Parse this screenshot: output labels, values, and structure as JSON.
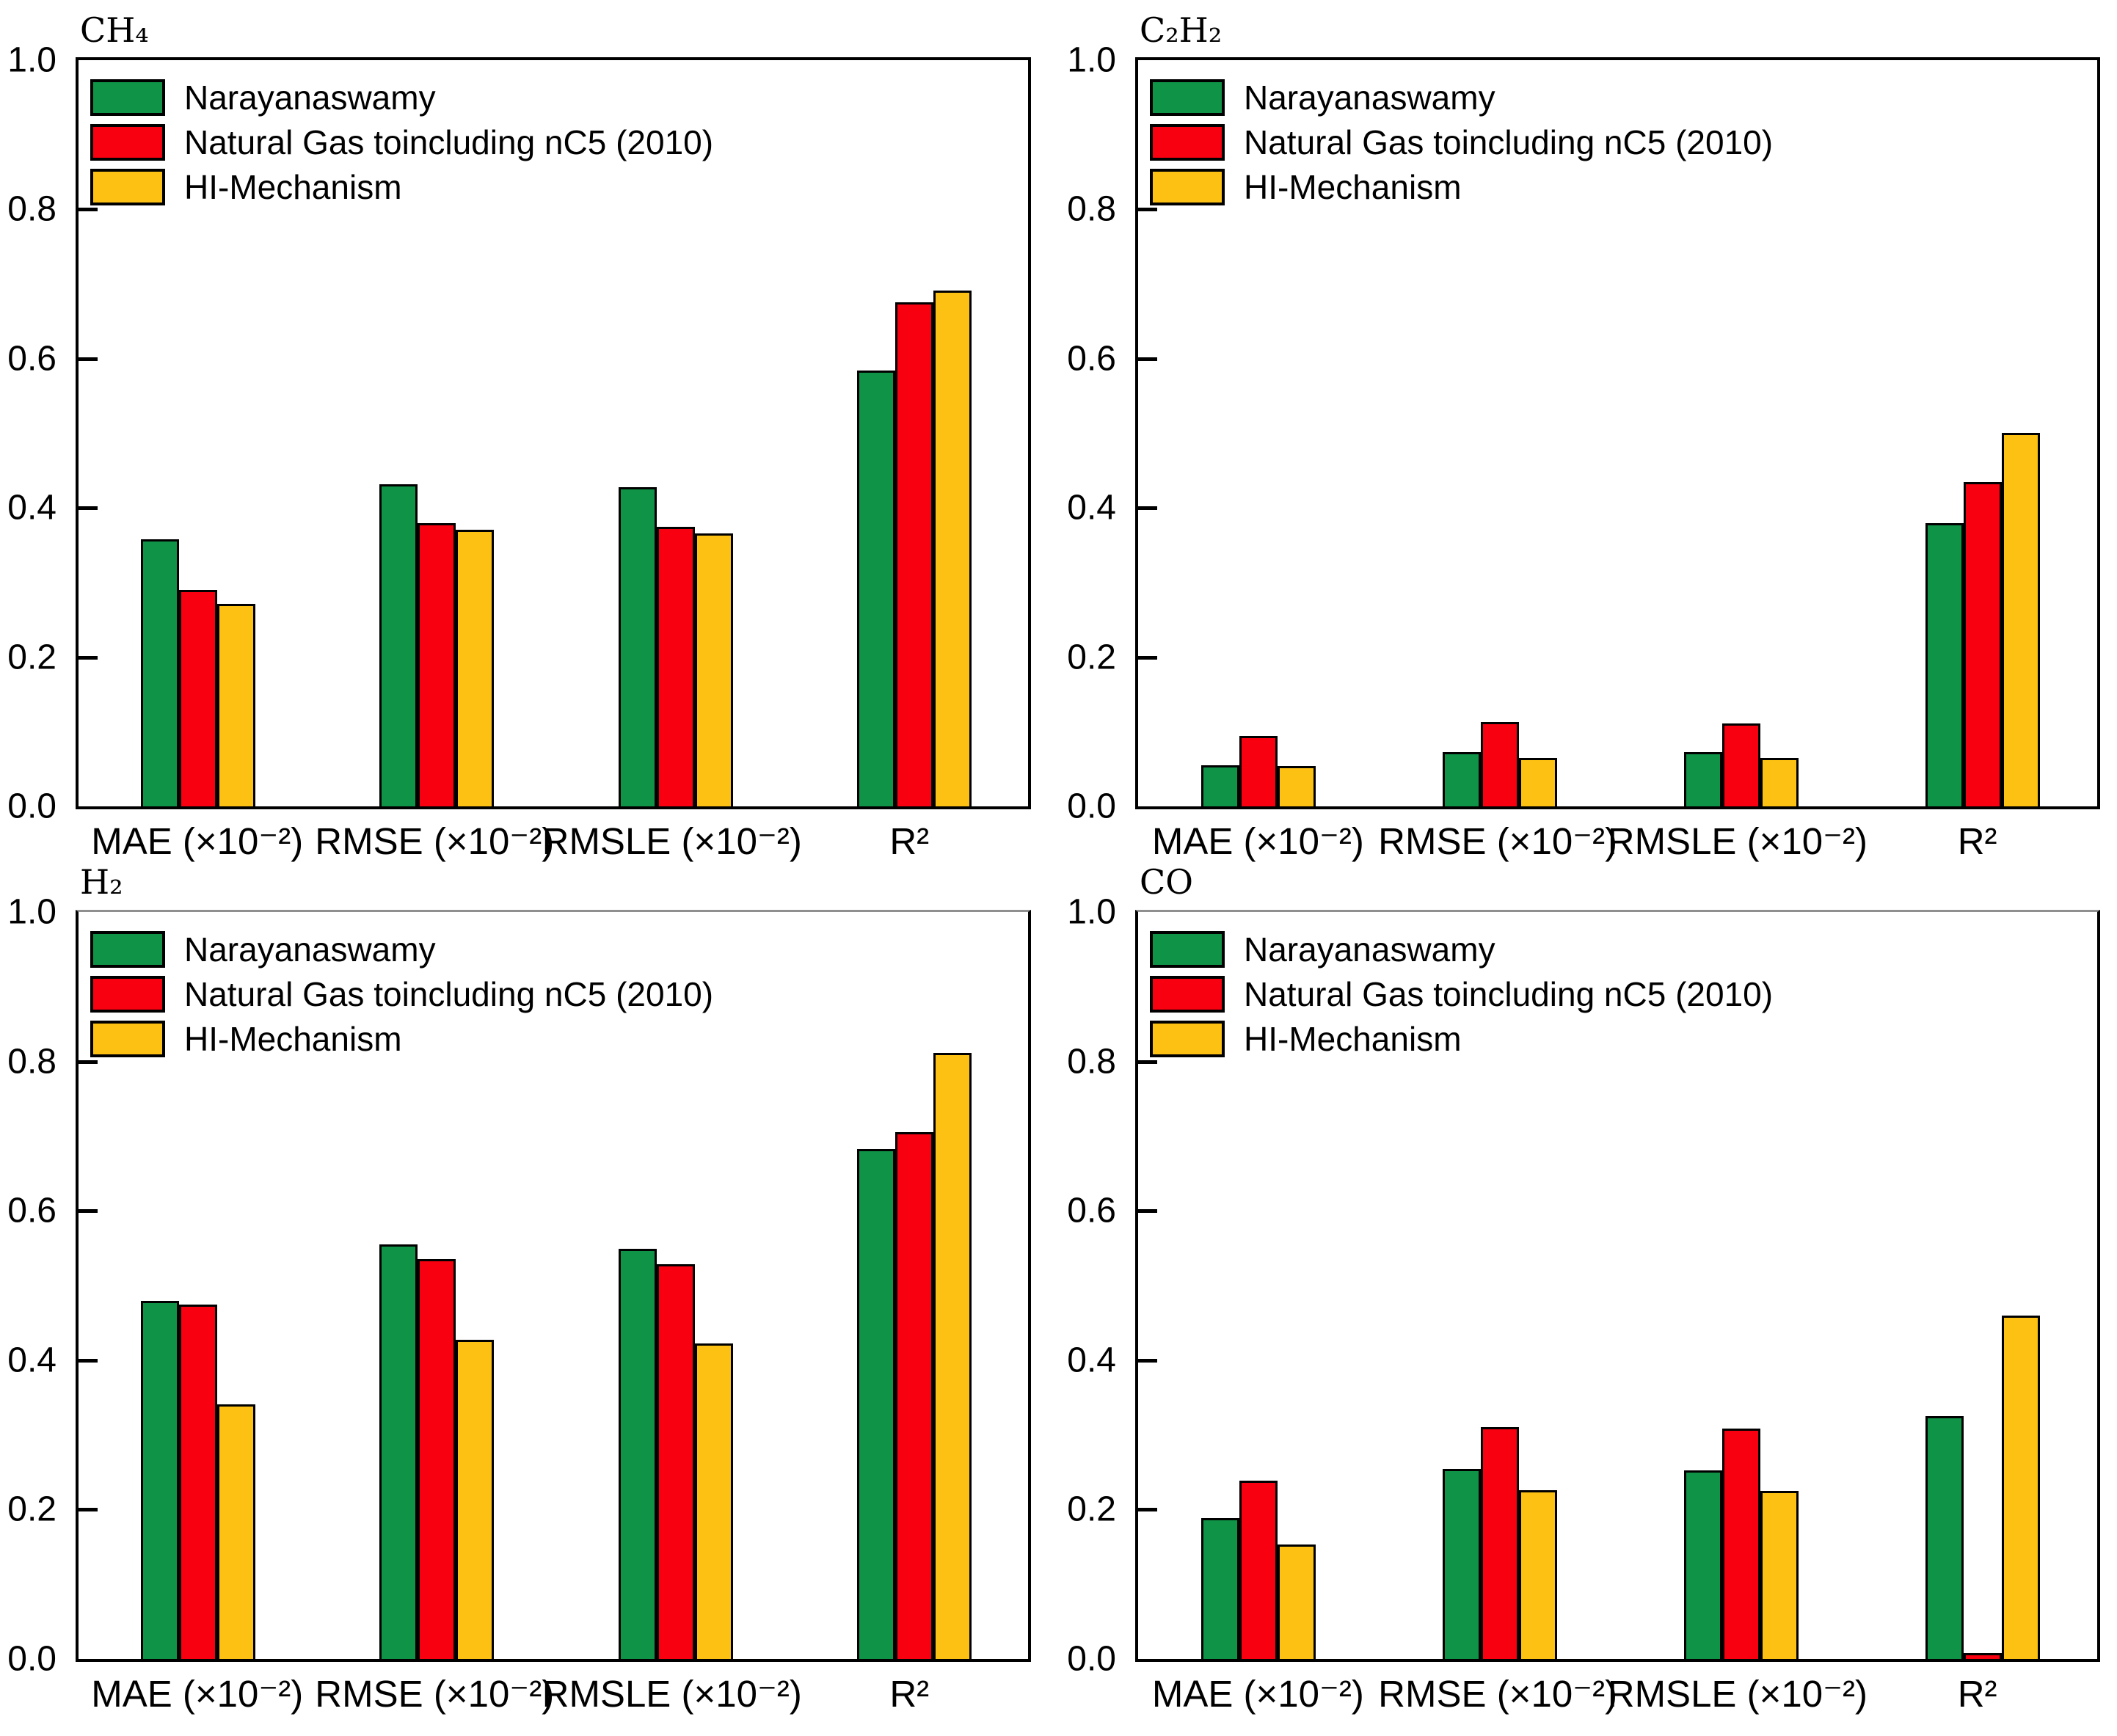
{
  "figure_title": "",
  "legend": {
    "items": [
      {
        "label": "Narayanaswamy",
        "color": "#0F9347"
      },
      {
        "label": "Natural Gas toincluding nC5 (2010)",
        "color": "#F8000F"
      },
      {
        "label": "HI-Mechanism",
        "color": "#FDC113"
      }
    ]
  },
  "axes": {
    "ylim": [
      0.0,
      1.0
    ],
    "y_ticks": [
      "0.0",
      "0.2",
      "0.4",
      "0.6",
      "0.8",
      "1.0"
    ],
    "grid": "off",
    "legend_position": "upper-left-inside"
  },
  "chart_data": [
    {
      "type": "bar",
      "title": "CH₄",
      "xlabel": "",
      "ylabel": "",
      "ylim": [
        0.0,
        1.0
      ],
      "categories": [
        "MAE (×10⁻²)",
        "RMSE (×10⁻²)",
        "RMSLE (×10⁻²)",
        "R²"
      ],
      "series": [
        {
          "name": "Narayanaswamy",
          "color": "#0F9347",
          "values": [
            0.358,
            0.432,
            0.428,
            0.584
          ]
        },
        {
          "name": "Natural Gas toincluding nC5 (2010)",
          "color": "#F8000F",
          "values": [
            0.29,
            0.38,
            0.375,
            0.676
          ]
        },
        {
          "name": "HI-Mechanism",
          "color": "#FDC113",
          "values": [
            0.271,
            0.371,
            0.366,
            0.691
          ]
        }
      ]
    },
    {
      "type": "bar",
      "title": "C₂H₂",
      "xlabel": "",
      "ylabel": "",
      "ylim": [
        0.0,
        1.0
      ],
      "categories": [
        "MAE (×10⁻²)",
        "RMSE (×10⁻²)",
        "RMSLE (×10⁻²)",
        "R²"
      ],
      "series": [
        {
          "name": "Narayanaswamy",
          "color": "#0F9347",
          "values": [
            0.055,
            0.073,
            0.073,
            0.38
          ]
        },
        {
          "name": "Natural Gas toincluding nC5 (2010)",
          "color": "#F8000F",
          "values": [
            0.094,
            0.113,
            0.111,
            0.435
          ]
        },
        {
          "name": "HI-Mechanism",
          "color": "#FDC113",
          "values": [
            0.054,
            0.065,
            0.065,
            0.5
          ]
        }
      ]
    },
    {
      "type": "bar",
      "title": "H₂",
      "xlabel": "",
      "ylabel": "",
      "ylim": [
        0.0,
        1.0
      ],
      "categories": [
        "MAE (×10⁻²)",
        "RMSE (×10⁻²)",
        "RMSLE (×10⁻²)",
        "R²"
      ],
      "series": [
        {
          "name": "Narayanaswamy",
          "color": "#0F9347",
          "values": [
            0.48,
            0.556,
            0.55,
            0.683
          ]
        },
        {
          "name": "Natural Gas toincluding nC5 (2010)",
          "color": "#F8000F",
          "values": [
            0.475,
            0.536,
            0.529,
            0.706
          ]
        },
        {
          "name": "HI-Mechanism",
          "color": "#FDC113",
          "values": [
            0.341,
            0.428,
            0.423,
            0.812
          ]
        }
      ]
    },
    {
      "type": "bar",
      "title": "CO",
      "xlabel": "",
      "ylabel": "",
      "ylim": [
        0.0,
        1.0
      ],
      "categories": [
        "MAE (×10⁻²)",
        "RMSE (×10⁻²)",
        "RMSLE (×10⁻²)",
        "R²"
      ],
      "series": [
        {
          "name": "Narayanaswamy",
          "color": "#0F9347",
          "values": [
            0.189,
            0.255,
            0.253,
            0.325
          ]
        },
        {
          "name": "Natural Gas toincluding nC5 (2010)",
          "color": "#F8000F",
          "values": [
            0.239,
            0.311,
            0.309,
            0.008
          ]
        },
        {
          "name": "HI-Mechanism",
          "color": "#FDC113",
          "values": [
            0.153,
            0.226,
            0.225,
            0.46
          ]
        }
      ]
    }
  ]
}
